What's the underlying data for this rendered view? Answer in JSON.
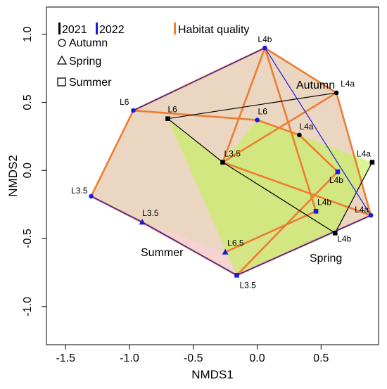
{
  "chart_data": {
    "type": "scatter",
    "title": "",
    "xlabel": "NMDS1",
    "ylabel": "NMDS2",
    "xlim": [
      -1.65,
      0.95
    ],
    "ylim": [
      -1.28,
      1.2
    ],
    "x_ticks": [
      -1.5,
      -1.0,
      -0.5,
      0.0,
      0.5
    ],
    "y_ticks": [
      -1.0,
      -0.5,
      0.0,
      0.5,
      1.0
    ],
    "tick_labels_x": [
      "-1.5",
      "-1.0",
      "-0.5",
      "0.0",
      "0.5"
    ],
    "tick_labels_y": [
      "-1.0",
      "-0.5",
      "0.0",
      "0.5",
      "1.0"
    ],
    "grid": false,
    "colors": {
      "y2021": "#000000",
      "y2022": "#1a1adb",
      "habitat": "#ed7d31",
      "autumn_fill": "#e2c4a8",
      "spring_fill": "#c6ef5e",
      "summer_fill": "#fad0da"
    },
    "points": [
      {
        "label": "L4b",
        "x": 0.06,
        "y": 0.9,
        "year": "2022",
        "season": "Autumn"
      },
      {
        "label": "L4a",
        "x": 0.62,
        "y": 0.57,
        "year": "2021",
        "season": "Autumn"
      },
      {
        "label": "L6",
        "x": -0.97,
        "y": 0.44,
        "year": "2022",
        "season": "Autumn"
      },
      {
        "label": "L6",
        "x": 0.0,
        "y": 0.37,
        "year": "2022",
        "season": "Autumn"
      },
      {
        "label": "L4a",
        "x": 0.33,
        "y": 0.26,
        "year": "2021",
        "season": "Autumn"
      },
      {
        "label": "L3.5",
        "x": -1.3,
        "y": -0.19,
        "year": "2022",
        "season": "Autumn"
      },
      {
        "label": "L6",
        "x": -0.7,
        "y": 0.38,
        "year": "2021",
        "season": "Summer"
      },
      {
        "label": "L3.5",
        "x": -0.27,
        "y": 0.06,
        "year": "2021",
        "season": "Summer"
      },
      {
        "label": "L4a",
        "x": 0.9,
        "y": 0.06,
        "year": "2021",
        "season": "Summer"
      },
      {
        "label": "L4b",
        "x": 0.61,
        "y": -0.46,
        "year": "2021",
        "season": "Summer"
      },
      {
        "label": "L4b",
        "x": 0.63,
        "y": -0.01,
        "year": "2022",
        "season": "Summer"
      },
      {
        "label": "L4b",
        "x": 0.46,
        "y": -0.3,
        "year": "2022",
        "season": "Summer"
      },
      {
        "label": "L3.5",
        "x": -0.16,
        "y": -0.77,
        "year": "2022",
        "season": "Summer"
      },
      {
        "label": "L4a",
        "x": 0.89,
        "y": -0.33,
        "year": "2022",
        "season": "Autumn"
      },
      {
        "label": "L3.5",
        "x": -0.9,
        "y": -0.38,
        "year": "2022",
        "season": "Spring"
      },
      {
        "label": "L6.5",
        "x": -0.25,
        "y": -0.6,
        "year": "2022",
        "season": "Spring"
      }
    ],
    "region_labels": [
      "Autumn",
      "Summer",
      "Spring"
    ],
    "legend": {
      "y2021": "2021",
      "y2022": "2022",
      "habitat": "Habitat quality",
      "autumn": "Autumn",
      "spring": "Spring",
      "summer": "Summer"
    }
  }
}
